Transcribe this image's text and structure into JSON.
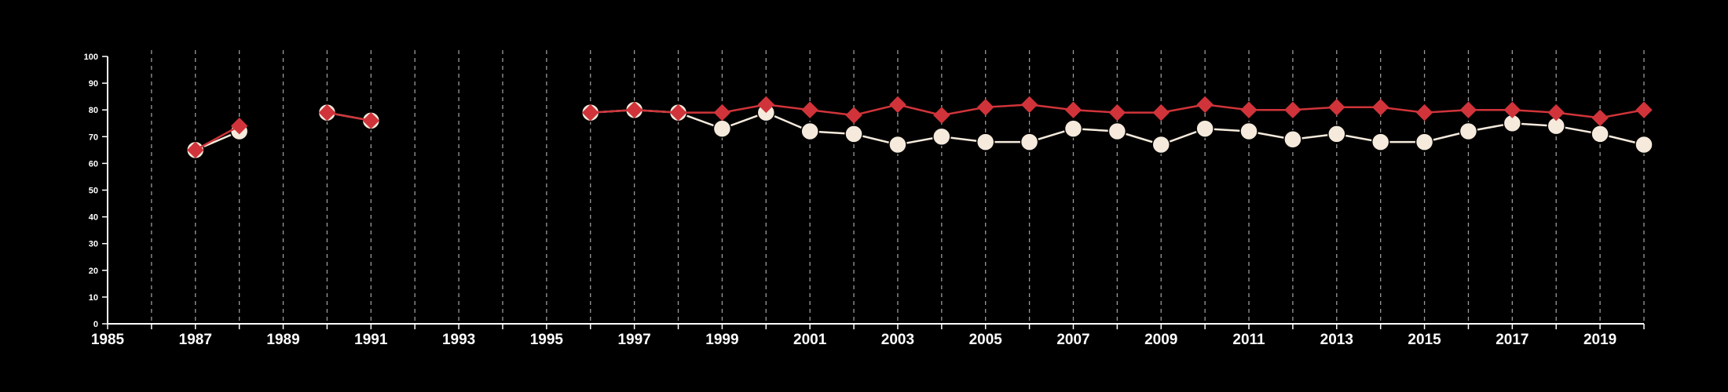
{
  "chart_data": {
    "type": "line",
    "title": "",
    "xlabel": "",
    "ylabel": "",
    "xlim": [
      1985,
      2020
    ],
    "ylim": [
      0,
      100
    ],
    "x_tick_labels": [
      "1985",
      "1987",
      "1989",
      "1991",
      "1993",
      "1995",
      "1997",
      "1999",
      "2001",
      "2003",
      "2005",
      "2007",
      "2009",
      "2011",
      "2013",
      "2015",
      "2017",
      "2019"
    ],
    "y_tick_labels": [
      "0",
      "10",
      "20",
      "30",
      "40",
      "50",
      "60",
      "70",
      "80",
      "90",
      "100"
    ],
    "vertical_grid": "dashed, every year",
    "legend": "none",
    "background": "#000000",
    "series": [
      {
        "color": "#f5eadc",
        "marker": "circle",
        "x": [
          1987,
          1988,
          1990,
          1991,
          1996,
          1997,
          1998,
          1999,
          2000,
          2001,
          2002,
          2003,
          2004,
          2005,
          2006,
          2007,
          2008,
          2009,
          2010,
          2011,
          2012,
          2013,
          2014,
          2015,
          2016,
          2017,
          2018,
          2019,
          2020
        ],
        "values": [
          65,
          72,
          79,
          76,
          79,
          80,
          79,
          73,
          79,
          72,
          71,
          67,
          70,
          68,
          68,
          73,
          72,
          67,
          73,
          72,
          69,
          71,
          68,
          68,
          72,
          75,
          74,
          71,
          67
        ]
      },
      {
        "color": "#d0343a",
        "marker": "diamond",
        "x": [
          1987,
          1988,
          1990,
          1991,
          1996,
          1997,
          1998,
          1999,
          2000,
          2001,
          2002,
          2003,
          2004,
          2005,
          2006,
          2007,
          2008,
          2009,
          2010,
          2011,
          2012,
          2013,
          2014,
          2015,
          2016,
          2017,
          2018,
          2019,
          2020
        ],
        "values": [
          65,
          74,
          79,
          76,
          79,
          80,
          79,
          79,
          82,
          80,
          78,
          82,
          78,
          81,
          82,
          80,
          79,
          79,
          82,
          80,
          80,
          81,
          81,
          79,
          80,
          80,
          79,
          77,
          80
        ]
      }
    ]
  }
}
